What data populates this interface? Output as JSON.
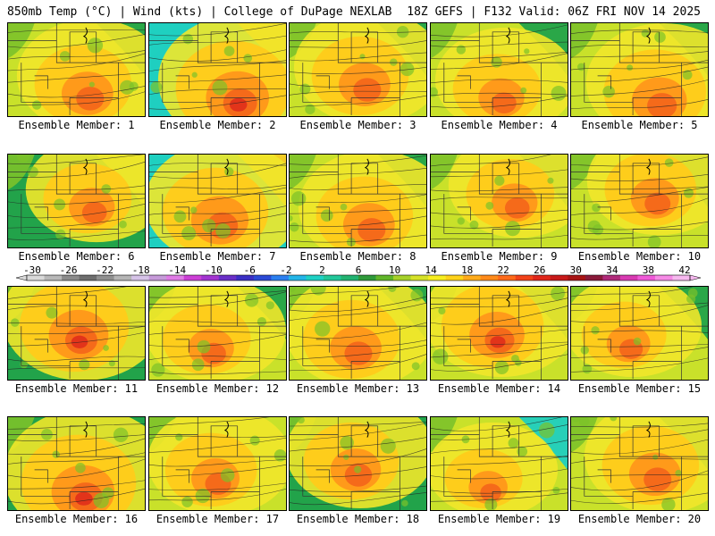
{
  "header": {
    "left": "850mb Temp (°C) | Wind (kts) | College of DuPage NEXLAB",
    "right": "18Z GEFS | F132 Valid: 06Z FRI NOV 14 2025"
  },
  "members": [
    {
      "label": "Ensemble Member: 1"
    },
    {
      "label": "Ensemble Member: 2"
    },
    {
      "label": "Ensemble Member: 3"
    },
    {
      "label": "Ensemble Member: 4"
    },
    {
      "label": "Ensemble Member: 5"
    },
    {
      "label": "Ensemble Member: 6"
    },
    {
      "label": "Ensemble Member: 7"
    },
    {
      "label": "Ensemble Member: 8"
    },
    {
      "label": "Ensemble Member: 9"
    },
    {
      "label": "Ensemble Member: 10"
    },
    {
      "label": "Ensemble Member: 11"
    },
    {
      "label": "Ensemble Member: 12"
    },
    {
      "label": "Ensemble Member: 13"
    },
    {
      "label": "Ensemble Member: 14"
    },
    {
      "label": "Ensemble Member: 15"
    },
    {
      "label": "Ensemble Member: 16"
    },
    {
      "label": "Ensemble Member: 17"
    },
    {
      "label": "Ensemble Member: 18"
    },
    {
      "label": "Ensemble Member: 19"
    },
    {
      "label": "Ensemble Member: 20"
    }
  ],
  "colorbar": {
    "labels": [
      "-30",
      "-26",
      "-22",
      "-18",
      "-14",
      "-10",
      "-6",
      "-2",
      "2",
      "6",
      "10",
      "14",
      "18",
      "22",
      "26",
      "30",
      "34",
      "38",
      "42"
    ],
    "colors": [
      "#d9d9d9",
      "#b8b8b8",
      "#8c8c8c",
      "#6e6e6e",
      "#909090",
      "#b5b5b5",
      "#d6c3e8",
      "#c69ad9",
      "#e07be6",
      "#cc3fd6",
      "#a334d1",
      "#6a2fc8",
      "#3b2fc4",
      "#2b4ad6",
      "#2b7ff0",
      "#23b5e8",
      "#1fd1c4",
      "#22c79a",
      "#22b371",
      "#2f9a3a",
      "#61b62a",
      "#a6d12a",
      "#d6e228",
      "#f7ee1f",
      "#ffd21a",
      "#ffab1a",
      "#ff8a1a",
      "#ff6a1a",
      "#f2421a",
      "#e0261a",
      "#c81a1a",
      "#a81414",
      "#8a1a3a",
      "#b02a7a",
      "#d83ab2",
      "#f05ad8",
      "#f68ae6",
      "#f6b8ef"
    ]
  },
  "map_colors": {
    "cold": "#1fcfc0",
    "cool": "#22a34a",
    "mild": "#7cc22a",
    "neutral": "#c9e12a",
    "warmish": "#f1e72a",
    "warm": "#ffcb1a",
    "hot": "#ff9a1a",
    "hotter": "#f56a1a",
    "hottest": "#e2341a"
  }
}
